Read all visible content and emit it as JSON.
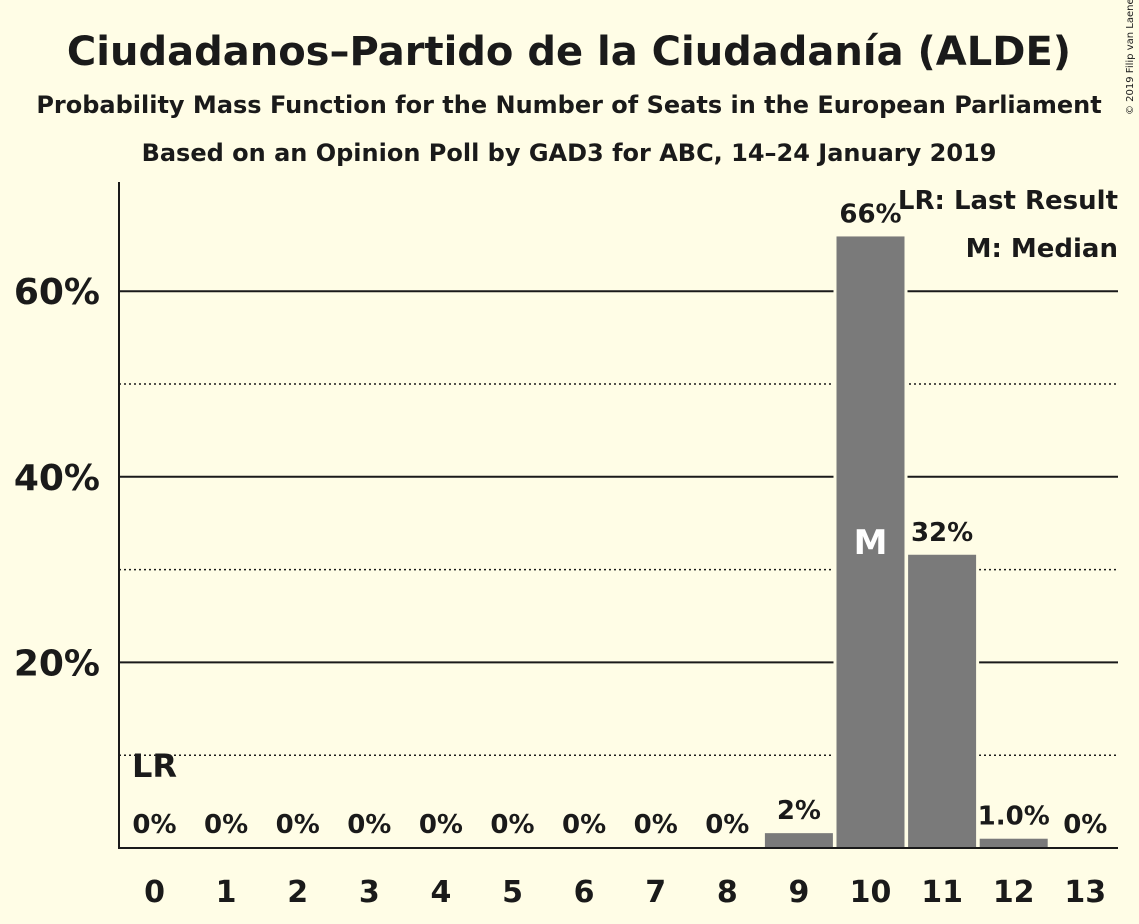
{
  "chart_data": {
    "type": "bar",
    "title": "Ciudadanos–Partido de la Ciudadanía (ALDE)",
    "subtitle": "Probability Mass Function for the Number of Seats in the European Parliament",
    "subtitle2": "Based on an Opinion Poll by GAD3 for ABC, 14–24 January 2019",
    "categories": [
      "0",
      "1",
      "2",
      "3",
      "4",
      "5",
      "6",
      "7",
      "8",
      "9",
      "10",
      "11",
      "12",
      "13"
    ],
    "values": [
      0,
      0,
      0,
      0,
      0,
      0,
      0,
      0,
      0,
      1.6,
      65.9,
      31.6,
      1.0,
      0
    ],
    "value_labels": [
      "0%",
      "0%",
      "0%",
      "0%",
      "0%",
      "0%",
      "0%",
      "0%",
      "0%",
      "2%",
      "66%",
      "32%",
      "1.0%",
      "0%"
    ],
    "ylim": [
      0,
      72
    ],
    "yticks": [
      20,
      40,
      60
    ],
    "ytick_labels": [
      "20%",
      "40%",
      "60%"
    ],
    "minor_gridlines": [
      10,
      30,
      50
    ],
    "last_result_index": 0,
    "last_result_marker": "LR",
    "median_index": 10,
    "median_marker": "M",
    "legend": [
      "LR: Last Result",
      "M: Median"
    ],
    "legend_position": "top-right",
    "copyright": "© 2019 Filip van Laenen",
    "colors": {
      "bar": "#7a7a7a",
      "background": "#fffde6",
      "text": "#1a1a1a"
    }
  }
}
